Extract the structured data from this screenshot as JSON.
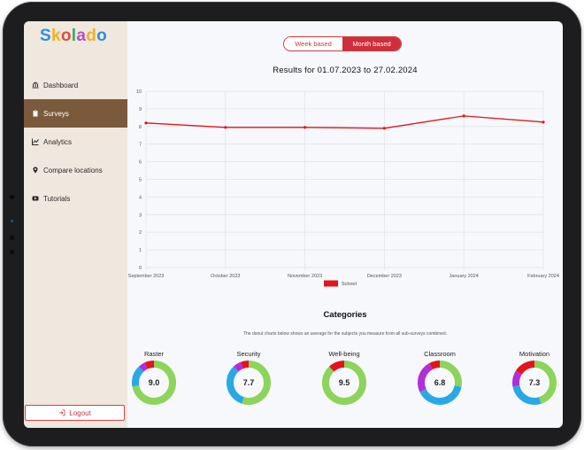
{
  "app": {
    "logo": [
      {
        "ch": "S",
        "color": "#2f8ee0"
      },
      {
        "ch": "k",
        "color": "#f0b21e"
      },
      {
        "ch": "o",
        "color": "#e34b3b"
      },
      {
        "ch": "l",
        "color": "#3aaa5c"
      },
      {
        "ch": "a",
        "color": "#b44fc4"
      },
      {
        "ch": "d",
        "color": "#f0b21e"
      },
      {
        "ch": "o",
        "color": "#2f8ee0"
      }
    ]
  },
  "sidebar": {
    "items": [
      {
        "label": "Dashboard",
        "icon": "bank-icon",
        "active": false
      },
      {
        "label": "Surveys",
        "icon": "clipboard-icon",
        "active": true
      },
      {
        "label": "Analytics",
        "icon": "line-chart-icon",
        "active": false
      },
      {
        "label": "Compare locations",
        "icon": "map-pin-icon",
        "active": false
      },
      {
        "label": "Tutorials",
        "icon": "video-icon",
        "active": false
      }
    ],
    "logout_label": "Logout"
  },
  "toggle": {
    "week_label": "Week based",
    "month_label": "Month based",
    "selected": "month"
  },
  "results_title": "Results for 01.07.2023 to 27.02.2024",
  "chart_data": {
    "type": "line",
    "categories": [
      "September 2023",
      "October 2023",
      "November 2023",
      "December 2023",
      "January 2024",
      "February 2024"
    ],
    "series": [
      {
        "name": "School",
        "values": [
          8.2,
          7.95,
          7.95,
          7.9,
          8.6,
          8.25
        ],
        "color": "#e3141c"
      }
    ],
    "ylim": [
      0,
      10
    ],
    "yticks": [
      "0",
      "1",
      "2",
      "3",
      "4",
      "5",
      "6",
      "7",
      "8",
      "9",
      "10"
    ],
    "grid": true,
    "legend_position": "bottom"
  },
  "categories": {
    "title": "Categories",
    "subtitle": "The donut charts below shows an average for the subjects you measure from all sub-surveys combined.",
    "items": [
      {
        "label": "Raster",
        "value": "9.0",
        "segments": [
          {
            "share": 0.72,
            "color": "#8cd45a"
          },
          {
            "share": 0.16,
            "color": "#29a8e6"
          },
          {
            "share": 0.05,
            "color": "#b02fd8"
          },
          {
            "share": 0.07,
            "color": "#e3141c"
          }
        ]
      },
      {
        "label": "Security",
        "value": "7.7",
        "segments": [
          {
            "share": 0.55,
            "color": "#8cd45a"
          },
          {
            "share": 0.33,
            "color": "#29a8e6"
          },
          {
            "share": 0.06,
            "color": "#b02fd8"
          },
          {
            "share": 0.06,
            "color": "#e3141c"
          }
        ]
      },
      {
        "label": "Well-being",
        "value": "9.5",
        "segments": [
          {
            "share": 0.88,
            "color": "#8cd45a"
          },
          {
            "share": 0.12,
            "color": "#e3141c"
          }
        ]
      },
      {
        "label": "Classroom",
        "value": "6.8",
        "segments": [
          {
            "share": 0.28,
            "color": "#8cd45a"
          },
          {
            "share": 0.4,
            "color": "#29a8e6"
          },
          {
            "share": 0.24,
            "color": "#b02fd8"
          },
          {
            "share": 0.08,
            "color": "#e3141c"
          }
        ]
      },
      {
        "label": "Motivation",
        "value": "7.3",
        "segments": [
          {
            "share": 0.45,
            "color": "#8cd45a"
          },
          {
            "share": 0.27,
            "color": "#29a8e6"
          },
          {
            "share": 0.12,
            "color": "#b02fd8"
          },
          {
            "share": 0.16,
            "color": "#e3141c"
          }
        ]
      }
    ]
  }
}
